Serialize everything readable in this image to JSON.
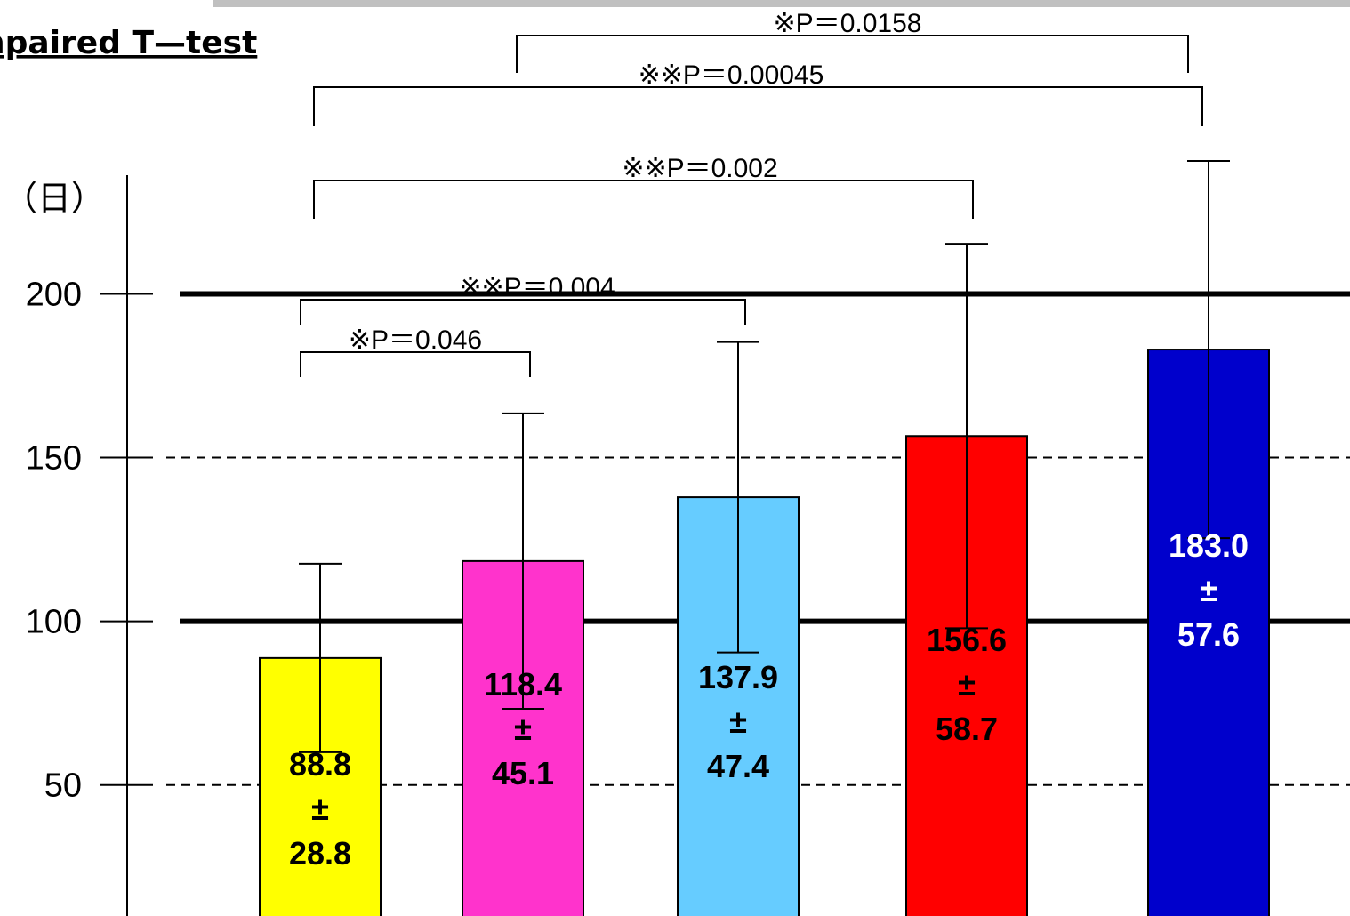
{
  "chart_data": {
    "type": "bar",
    "title": "",
    "test_label": "npaired T—test",
    "unit_label": "（日）",
    "yticks": [
      50,
      100,
      150,
      200
    ],
    "ylim": [
      10,
      230
    ],
    "solid_reference_lines": [
      100,
      200
    ],
    "dashed_reference_lines": [
      50,
      150
    ],
    "bars": [
      {
        "value": 88.8,
        "sd": 28.8,
        "color": "#ffff00",
        "label_color": "#000000",
        "label": [
          "88.8",
          "±",
          "28.8"
        ]
      },
      {
        "value": 118.4,
        "sd": 45.1,
        "color": "#ff33cc",
        "label_color": "#000000",
        "label": [
          "118.4",
          "±",
          "45.1"
        ]
      },
      {
        "value": 137.9,
        "sd": 47.4,
        "color": "#66ccff",
        "label_color": "#000000",
        "label": [
          "137.9",
          "±",
          "47.4"
        ]
      },
      {
        "value": 156.6,
        "sd": 58.7,
        "color": "#ff0000",
        "label_color": "#000000",
        "label": [
          "156.6",
          "±",
          "58.7"
        ]
      },
      {
        "value": 183.0,
        "sd": 57.6,
        "color": "#0000cc",
        "label_color": "#ffffff",
        "label": [
          "183.0",
          "±",
          "57.6"
        ]
      }
    ],
    "comparisons": [
      {
        "from": 0,
        "to": 1,
        "text": "※P＝0.046"
      },
      {
        "from": 0,
        "to": 2,
        "text": "※※P＝0.004"
      },
      {
        "from": 0,
        "to": 3,
        "text": "※※P＝0.002"
      },
      {
        "from": 0,
        "to": 4,
        "text": "※※P＝0.00045"
      },
      {
        "from": 1,
        "to": 4,
        "text": "※P＝0.0158"
      }
    ]
  }
}
